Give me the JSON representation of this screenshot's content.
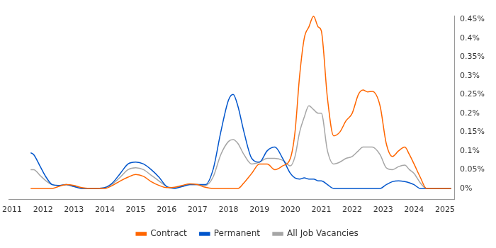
{
  "chart_data": {
    "type": "line",
    "x": [
      2011.6,
      2011.7,
      2011.9,
      2012.1,
      2012.3,
      2012.5,
      2012.75,
      2013.0,
      2013.25,
      2013.5,
      2013.75,
      2014.0,
      2014.25,
      2014.5,
      2014.75,
      2015.0,
      2015.25,
      2015.5,
      2015.75,
      2016.0,
      2016.25,
      2016.5,
      2016.75,
      2017.0,
      2017.25,
      2017.5,
      2017.75,
      2018.0,
      2018.15,
      2018.3,
      2018.5,
      2018.75,
      2019.0,
      2019.25,
      2019.5,
      2019.75,
      2020.0,
      2020.15,
      2020.3,
      2020.45,
      2020.6,
      2020.75,
      2020.9,
      2021.0,
      2021.2,
      2021.4,
      2021.6,
      2021.8,
      2022.0,
      2022.2,
      2022.35,
      2022.5,
      2022.65,
      2022.9,
      2023.1,
      2023.3,
      2023.5,
      2023.7,
      2023.85,
      2024.0,
      2024.2,
      2024.4,
      2024.6,
      2025.0,
      2025.2
    ],
    "series": [
      {
        "name": "Contract",
        "color": "#ff6600",
        "values": [
          0,
          0,
          0,
          0,
          0,
          0.005,
          0.01,
          0.008,
          0.002,
          0,
          0,
          0,
          0.008,
          0.02,
          0.03,
          0.037,
          0.032,
          0.018,
          0.008,
          0.002,
          0.003,
          0.008,
          0.012,
          0.01,
          0.003,
          0,
          0,
          0,
          0,
          0,
          0.015,
          0.04,
          0.065,
          0.065,
          0.05,
          0.06,
          0.08,
          0.15,
          0.3,
          0.4,
          0.43,
          0.458,
          0.43,
          0.42,
          0.24,
          0.14,
          0.15,
          0.18,
          0.2,
          0.25,
          0.262,
          0.257,
          0.258,
          0.22,
          0.12,
          0.085,
          0.1,
          0.11,
          0.09,
          0.065,
          0.03,
          0,
          0,
          0,
          0
        ]
      },
      {
        "name": "Permanent",
        "color": "#0055cc",
        "values": [
          0.095,
          0.09,
          0.06,
          0.03,
          0.01,
          0.008,
          0.01,
          0.005,
          0,
          0,
          0,
          0.002,
          0.015,
          0.04,
          0.065,
          0.07,
          0.065,
          0.05,
          0.03,
          0.005,
          0,
          0.005,
          0.01,
          0.01,
          0.01,
          0.05,
          0.15,
          0.235,
          0.25,
          0.22,
          0.15,
          0.08,
          0.07,
          0.1,
          0.11,
          0.08,
          0.04,
          0.028,
          0.025,
          0.028,
          0.025,
          0.025,
          0.02,
          0.02,
          0.01,
          0,
          0,
          0,
          0,
          0,
          0,
          0,
          0,
          0,
          0.01,
          0.018,
          0.02,
          0.018,
          0.015,
          0.01,
          0,
          0,
          0,
          0,
          0
        ]
      },
      {
        "name": "All Job Vacancies",
        "color": "#a6a6a6",
        "values": [
          0.05,
          0.05,
          0.035,
          0.02,
          0.01,
          0.008,
          0.01,
          0.006,
          0,
          0,
          0,
          0.002,
          0.012,
          0.03,
          0.05,
          0.055,
          0.05,
          0.035,
          0.02,
          0.005,
          0.002,
          0.006,
          0.01,
          0.01,
          0.008,
          0.03,
          0.09,
          0.125,
          0.13,
          0.12,
          0.09,
          0.065,
          0.07,
          0.08,
          0.08,
          0.075,
          0.06,
          0.085,
          0.15,
          0.19,
          0.22,
          0.21,
          0.2,
          0.2,
          0.1,
          0.065,
          0.07,
          0.08,
          0.085,
          0.1,
          0.11,
          0.11,
          0.11,
          0.09,
          0.055,
          0.05,
          0.058,
          0.062,
          0.05,
          0.04,
          0.015,
          0,
          0,
          0,
          0
        ]
      }
    ],
    "xlim": [
      2010.9,
      2025.3
    ],
    "xticks": [
      2011,
      2012,
      2013,
      2014,
      2015,
      2016,
      2017,
      2018,
      2019,
      2020,
      2021,
      2022,
      2023,
      2024,
      2025
    ],
    "ylim": [
      -0.03,
      0.46
    ],
    "yticks": [
      {
        "value": 0,
        "label": "0%"
      },
      {
        "value": 0.05,
        "label": "0.05%"
      },
      {
        "value": 0.1,
        "label": "0.1%"
      },
      {
        "value": 0.15,
        "label": "0.15%"
      },
      {
        "value": 0.2,
        "label": "0.2%"
      },
      {
        "value": 0.25,
        "label": "0.25%"
      },
      {
        "value": 0.3,
        "label": "0.3%"
      },
      {
        "value": 0.35,
        "label": "0.35%"
      },
      {
        "value": 0.4,
        "label": "0.4%"
      },
      {
        "value": 0.45,
        "label": "0.45%"
      }
    ],
    "grid": false,
    "legend": "bottom"
  }
}
